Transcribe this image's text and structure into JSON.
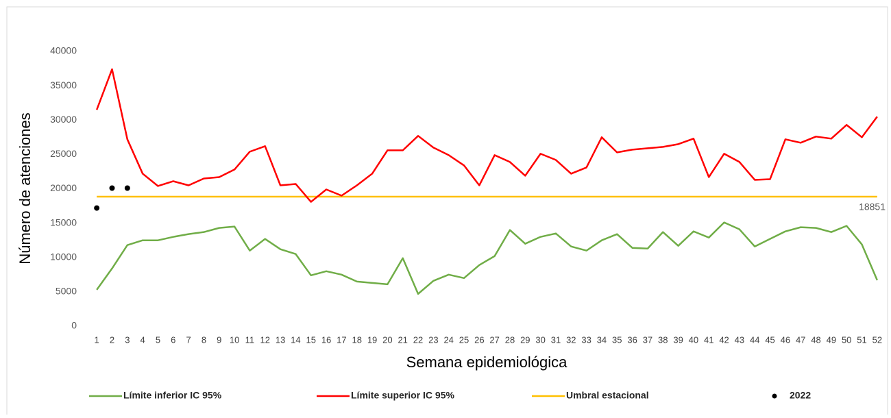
{
  "chart_data": {
    "type": "line",
    "y_label": "Número de atenciones",
    "x_label": "Semana epidemiológica",
    "categories": [
      1,
      2,
      3,
      4,
      5,
      6,
      7,
      8,
      9,
      10,
      11,
      12,
      13,
      14,
      15,
      16,
      17,
      18,
      19,
      20,
      21,
      22,
      23,
      24,
      25,
      26,
      27,
      28,
      29,
      30,
      31,
      32,
      33,
      34,
      35,
      36,
      37,
      38,
      39,
      40,
      41,
      42,
      43,
      44,
      45,
      46,
      47,
      48,
      49,
      50,
      51,
      52
    ],
    "ylim": [
      0,
      40000
    ],
    "yticks": [
      0,
      5000,
      10000,
      15000,
      20000,
      25000,
      30000,
      35000,
      40000
    ],
    "series": [
      {
        "name": "Límite inferior IC 95%",
        "color": "#70ad47",
        "values": [
          5300,
          8400,
          11800,
          12500,
          12500,
          13000,
          13400,
          13700,
          14300,
          14500,
          11000,
          12700,
          11200,
          10500,
          7400,
          8000,
          7500,
          6500,
          6300,
          6100,
          9900,
          4700,
          6600,
          7500,
          7000,
          8900,
          10200,
          14000,
          12000,
          13000,
          13500,
          11600,
          11000,
          12500,
          13400,
          11400,
          11300,
          13700,
          11700,
          13800,
          12900,
          15100,
          14100,
          11600,
          12700,
          13800,
          14400,
          14300,
          13700,
          14600,
          11900,
          6700
        ]
      },
      {
        "name": "Límite superior IC 95%",
        "color": "#ff0000",
        "values": [
          31500,
          37400,
          27200,
          22200,
          20400,
          21100,
          20500,
          21500,
          21700,
          22800,
          25400,
          26200,
          20500,
          20700,
          18100,
          19900,
          19000,
          20500,
          22200,
          25600,
          25600,
          27700,
          26000,
          24900,
          23400,
          20500,
          24900,
          23900,
          21900,
          25100,
          24200,
          22200,
          23100,
          27500,
          25300,
          25700,
          25900,
          26100,
          26500,
          27300,
          21700,
          25100,
          23900,
          21300,
          21400,
          27200,
          26700,
          27600,
          27300,
          29300,
          27500,
          30500
        ]
      },
      {
        "name": "2022",
        "color": "#000000",
        "markers_only": true,
        "values": [
          17200,
          20100,
          20100,
          null,
          null,
          null,
          null,
          null,
          null,
          null,
          null,
          null,
          null,
          null,
          null,
          null,
          null,
          null,
          null,
          null,
          null,
          null,
          null,
          null,
          null,
          null,
          null,
          null,
          null,
          null,
          null,
          null,
          null,
          null,
          null,
          null,
          null,
          null,
          null,
          null,
          null,
          null,
          null,
          null,
          null,
          null,
          null,
          null,
          null,
          null,
          null,
          null
        ]
      }
    ],
    "threshold": {
      "name": "Umbral estacional",
      "color": "#ffc000",
      "value": 18851
    }
  }
}
